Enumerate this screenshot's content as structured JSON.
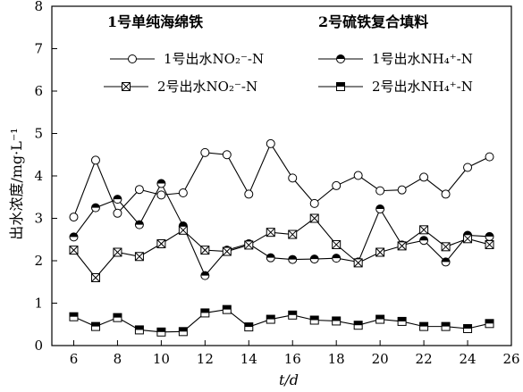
{
  "chart_data": {
    "type": "line",
    "xlabel": "t/d",
    "ylabel": "出水浓度/mg·L⁻¹",
    "xlim": [
      5,
      26
    ],
    "ylim": [
      0,
      8
    ],
    "xticks": [
      6,
      8,
      10,
      12,
      14,
      16,
      18,
      20,
      22,
      24,
      26
    ],
    "yticks": [
      0,
      1,
      2,
      3,
      4,
      5,
      6,
      7,
      8
    ],
    "grid": false,
    "legend_position": "top",
    "legend_headers": [
      "1号单纯海绵铁",
      "2号硫铁复合填料"
    ],
    "x": [
      6,
      7,
      8,
      9,
      10,
      11,
      12,
      13,
      14,
      15,
      16,
      17,
      18,
      19,
      20,
      21,
      22,
      23,
      24,
      25
    ],
    "series": [
      {
        "name": "1号出水NO₂⁻-N",
        "marker": "open-circle",
        "values": [
          3.03,
          4.37,
          3.12,
          3.68,
          3.55,
          3.6,
          4.55,
          4.5,
          3.57,
          4.76,
          3.95,
          3.35,
          3.77,
          4.01,
          3.65,
          3.67,
          3.97,
          3.57,
          4.2,
          4.45
        ]
      },
      {
        "name": "1号出水NH₄⁺-N",
        "marker": "half-filled-circle",
        "values": [
          2.56,
          3.25,
          3.45,
          2.85,
          3.82,
          2.82,
          1.65,
          2.25,
          2.4,
          2.07,
          2.03,
          2.04,
          2.06,
          1.97,
          3.22,
          2.37,
          2.48,
          1.97,
          2.6,
          2.57
        ]
      },
      {
        "name": "2号出水NO₂⁻-N",
        "marker": "crossed-square",
        "values": [
          2.25,
          1.6,
          2.2,
          2.1,
          2.4,
          2.72,
          2.25,
          2.22,
          2.37,
          2.67,
          2.62,
          3.0,
          2.38,
          1.95,
          2.2,
          2.35,
          2.73,
          2.33,
          2.52,
          2.38
        ]
      },
      {
        "name": "2号出水NH₄⁺-N",
        "marker": "half-filled-square",
        "values": [
          0.68,
          0.45,
          0.66,
          0.37,
          0.32,
          0.33,
          0.77,
          0.85,
          0.44,
          0.62,
          0.72,
          0.6,
          0.58,
          0.48,
          0.62,
          0.57,
          0.45,
          0.45,
          0.4,
          0.52
        ]
      }
    ]
  }
}
